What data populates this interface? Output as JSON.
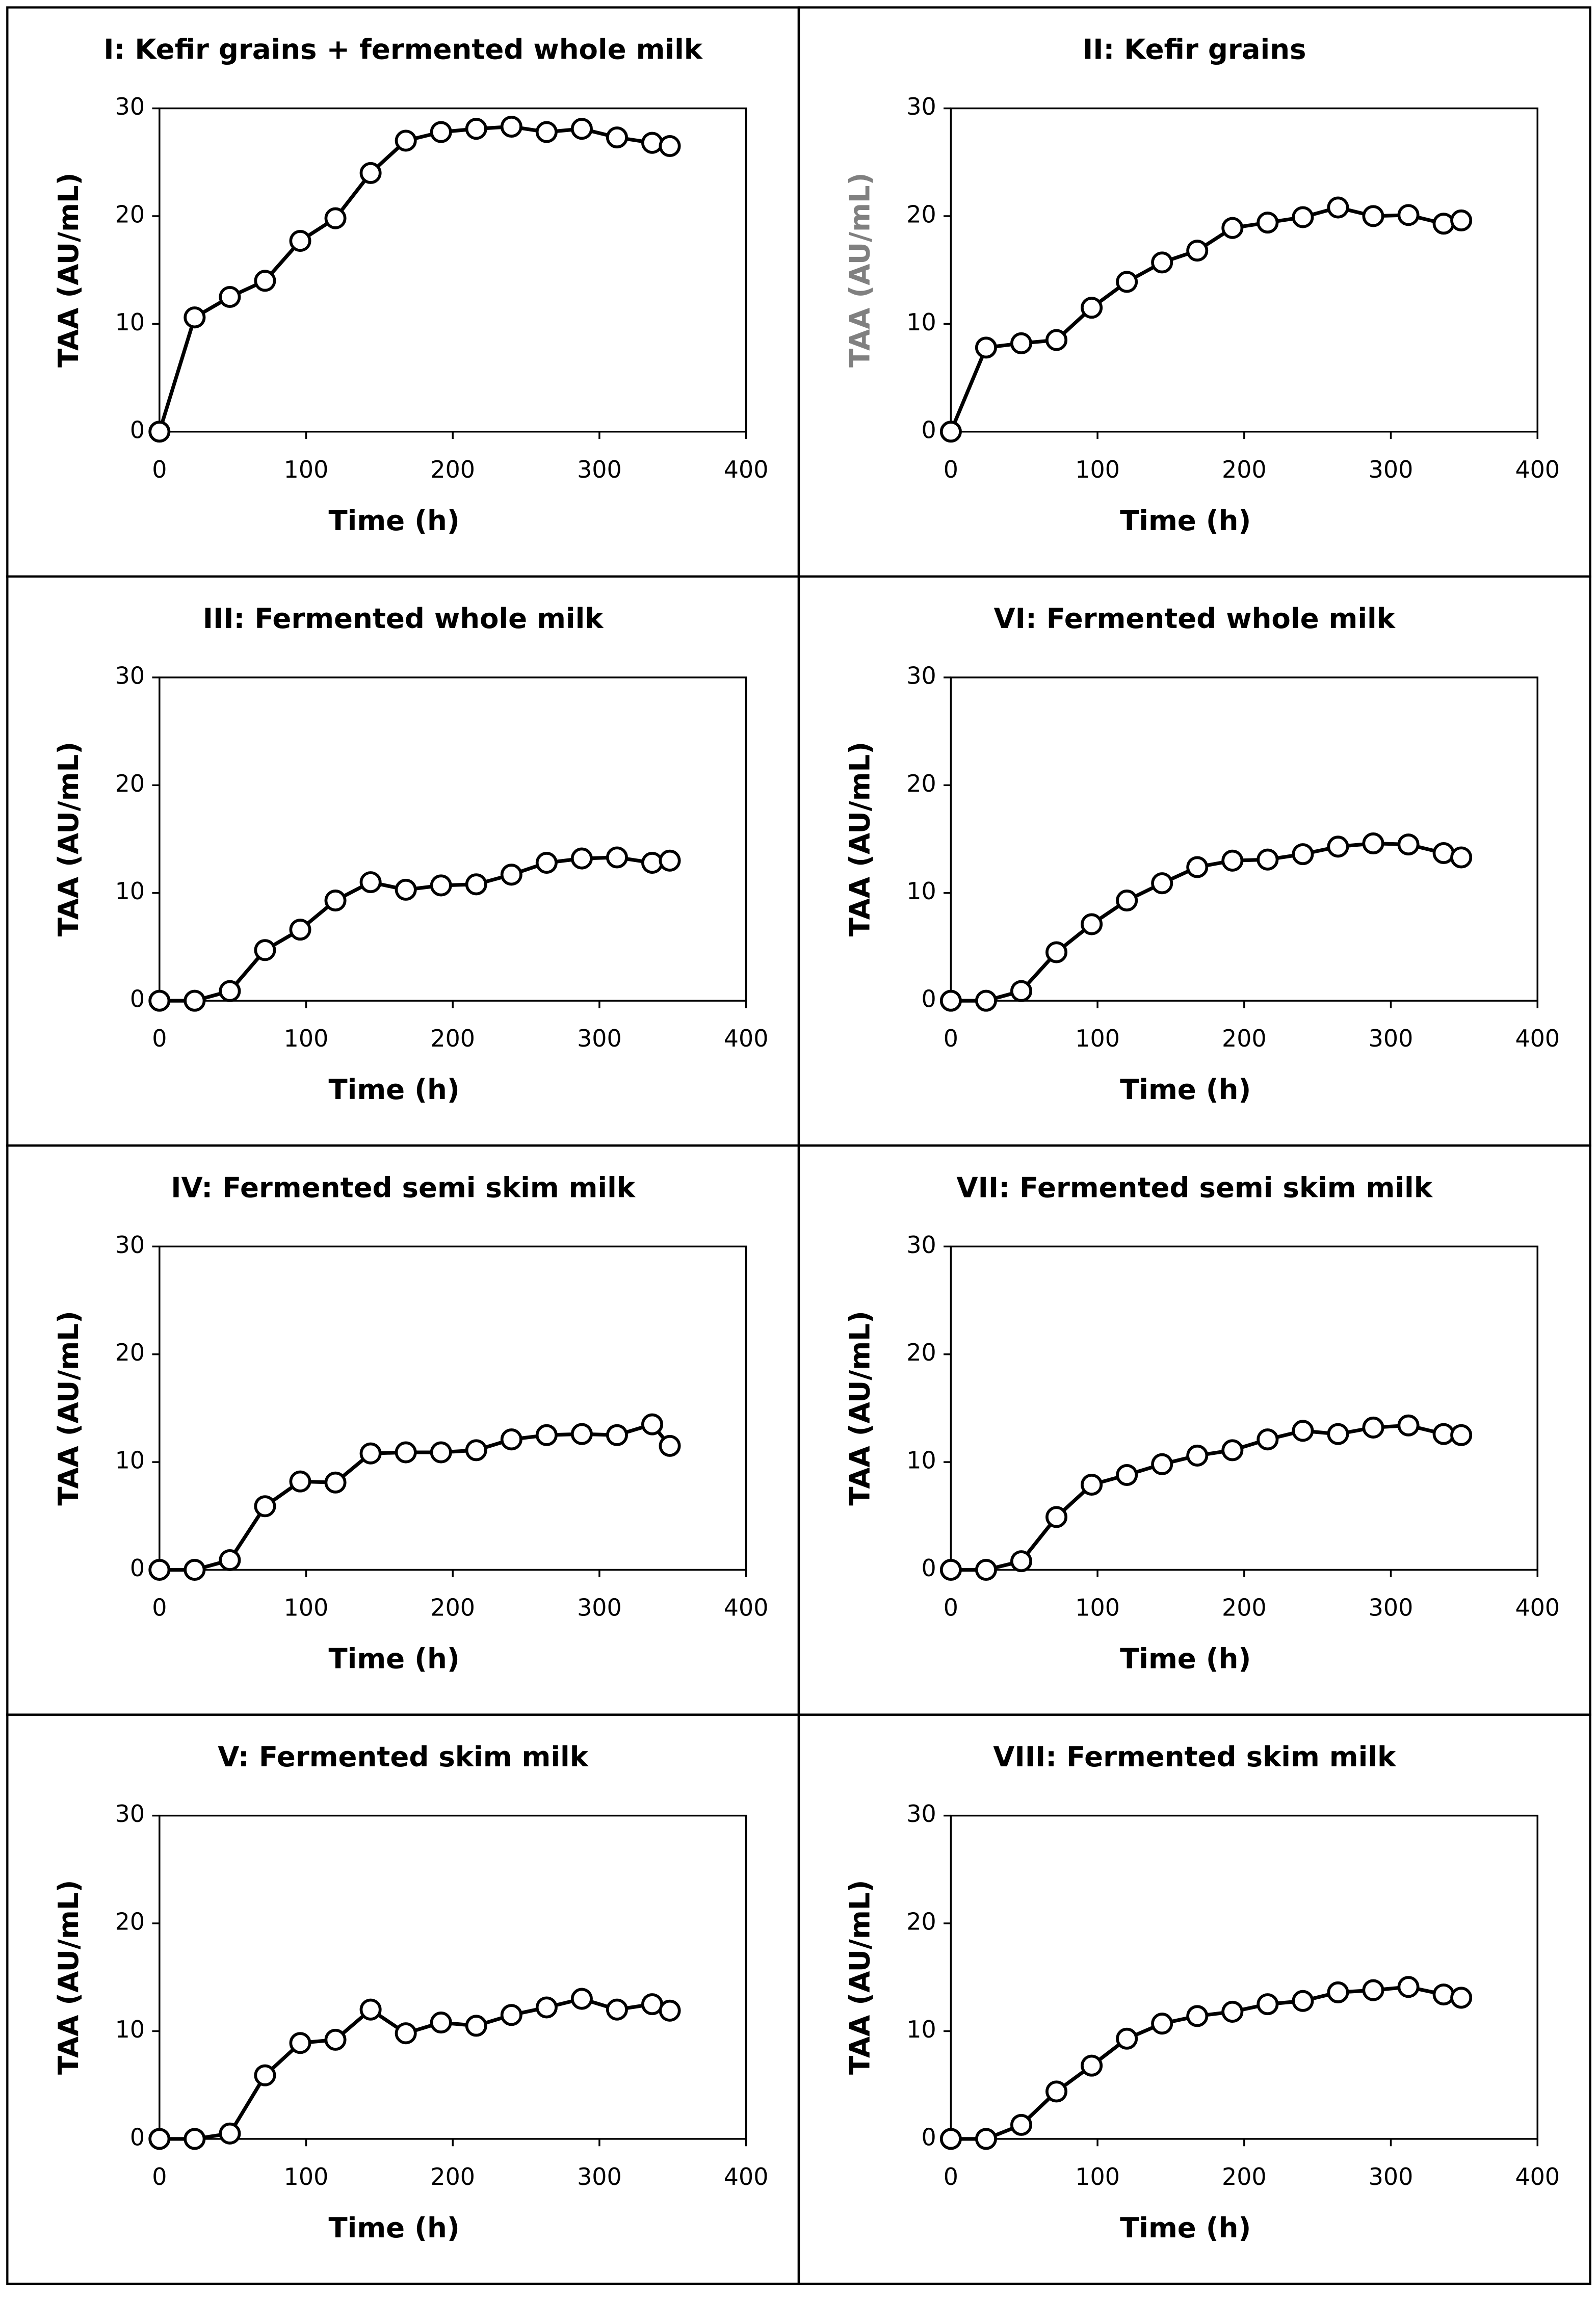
{
  "chart_data": [
    {
      "type": "line",
      "title": "I: Kefir grains + fermented whole milk",
      "xlabel": "Time (h)",
      "ylabel": "TAA (AU/mL)",
      "ylabel_color": "#000000",
      "x": [
        0,
        24,
        48,
        72,
        96,
        120,
        144,
        168,
        192,
        216,
        240,
        264,
        288,
        312,
        336,
        348
      ],
      "values": [
        0,
        10.6,
        12.5,
        14,
        17.7,
        19.8,
        24,
        27,
        27.8,
        28.1,
        28.3,
        27.8,
        28.1,
        27.3,
        26.8,
        26.5
      ],
      "color": "#000000",
      "marker_fill": "#ffffff",
      "xlim": [
        0,
        400
      ],
      "ylim": [
        0,
        30
      ],
      "xticks": [
        0,
        100,
        200,
        300,
        400
      ],
      "yticks": [
        0,
        10,
        20,
        30
      ]
    },
    {
      "type": "line",
      "title": "II: Kefir grains",
      "xlabel": "Time (h)",
      "ylabel": "TAA (AU/mL)",
      "ylabel_color": "#808080",
      "x": [
        0,
        24,
        48,
        72,
        96,
        120,
        144,
        168,
        192,
        216,
        240,
        264,
        288,
        312,
        336,
        348
      ],
      "values": [
        0,
        7.8,
        8.2,
        8.5,
        11.5,
        13.9,
        15.7,
        16.8,
        18.9,
        19.4,
        19.9,
        20.8,
        20,
        20.1,
        19.3,
        19.6
      ],
      "color": "#000000",
      "marker_fill": "#ffffff",
      "xlim": [
        0,
        400
      ],
      "ylim": [
        0,
        30
      ],
      "xticks": [
        0,
        100,
        200,
        300,
        400
      ],
      "yticks": [
        0,
        10,
        20,
        30
      ]
    },
    {
      "type": "line",
      "title": "III: Fermented whole milk",
      "xlabel": "Time (h)",
      "ylabel": "TAA (AU/mL)",
      "ylabel_color": "#000000",
      "x": [
        0,
        24,
        48,
        72,
        96,
        120,
        144,
        168,
        192,
        216,
        240,
        264,
        288,
        312,
        336,
        348
      ],
      "values": [
        0,
        0,
        0.9,
        4.7,
        6.6,
        9.3,
        11,
        10.3,
        10.7,
        10.8,
        11.7,
        12.8,
        13.2,
        13.3,
        12.8,
        13
      ],
      "color": "#000000",
      "marker_fill": "#ffffff",
      "xlim": [
        0,
        400
      ],
      "ylim": [
        0,
        30
      ],
      "xticks": [
        0,
        100,
        200,
        300,
        400
      ],
      "yticks": [
        0,
        10,
        20,
        30
      ]
    },
    {
      "type": "line",
      "title": "VI: Fermented whole milk",
      "xlabel": "Time (h)",
      "ylabel": "TAA (AU/mL)",
      "ylabel_color": "#000000",
      "x": [
        0,
        24,
        48,
        72,
        96,
        120,
        144,
        168,
        192,
        216,
        240,
        264,
        288,
        312,
        336,
        348
      ],
      "values": [
        0,
        0,
        0.9,
        4.5,
        7.1,
        9.3,
        10.9,
        12.4,
        13,
        13.1,
        13.6,
        14.3,
        14.6,
        14.5,
        13.7,
        13.3
      ],
      "color": "#000000",
      "marker_fill": "#ffffff",
      "xlim": [
        0,
        400
      ],
      "ylim": [
        0,
        30
      ],
      "xticks": [
        0,
        100,
        200,
        300,
        400
      ],
      "yticks": [
        0,
        10,
        20,
        30
      ]
    },
    {
      "type": "line",
      "title": "IV: Fermented semi skim milk",
      "xlabel": "Time (h)",
      "ylabel": "TAA (AU/mL)",
      "ylabel_color": "#000000",
      "x": [
        0,
        24,
        48,
        72,
        96,
        120,
        144,
        168,
        192,
        216,
        240,
        264,
        288,
        312,
        336,
        348
      ],
      "values": [
        0,
        0,
        0.9,
        5.9,
        8.2,
        8.1,
        10.8,
        10.9,
        10.9,
        11.1,
        12.1,
        12.5,
        12.6,
        12.5,
        13.5,
        11.5
      ],
      "color": "#000000",
      "marker_fill": "#ffffff",
      "xlim": [
        0,
        400
      ],
      "ylim": [
        0,
        30
      ],
      "xticks": [
        0,
        100,
        200,
        300,
        400
      ],
      "yticks": [
        0,
        10,
        20,
        30
      ]
    },
    {
      "type": "line",
      "title": "VII: Fermented semi skim milk",
      "xlabel": "Time (h)",
      "ylabel": "TAA (AU/mL)",
      "ylabel_color": "#000000",
      "x": [
        0,
        24,
        48,
        72,
        96,
        120,
        144,
        168,
        192,
        216,
        240,
        264,
        288,
        312,
        336,
        348
      ],
      "values": [
        0,
        0,
        0.8,
        4.9,
        7.9,
        8.8,
        9.8,
        10.6,
        11.1,
        12.1,
        12.9,
        12.6,
        13.2,
        13.4,
        12.6,
        12.5
      ],
      "color": "#000000",
      "marker_fill": "#ffffff",
      "xlim": [
        0,
        400
      ],
      "ylim": [
        0,
        30
      ],
      "xticks": [
        0,
        100,
        200,
        300,
        400
      ],
      "yticks": [
        0,
        10,
        20,
        30
      ]
    },
    {
      "type": "line",
      "title": "V: Fermented skim milk",
      "xlabel": "Time (h)",
      "ylabel": "TAA (AU/mL)",
      "ylabel_color": "#000000",
      "x": [
        0,
        24,
        48,
        72,
        96,
        120,
        144,
        168,
        192,
        216,
        240,
        264,
        288,
        312,
        336,
        348
      ],
      "values": [
        0,
        0,
        0.5,
        5.9,
        8.9,
        9.2,
        12,
        9.8,
        10.8,
        10.5,
        11.5,
        12.2,
        13,
        12,
        12.5,
        11.9
      ],
      "color": "#000000",
      "marker_fill": "#ffffff",
      "xlim": [
        0,
        400
      ],
      "ylim": [
        0,
        30
      ],
      "xticks": [
        0,
        100,
        200,
        300,
        400
      ],
      "yticks": [
        0,
        10,
        20,
        30
      ]
    },
    {
      "type": "line",
      "title": "VIII: Fermented skim milk",
      "xlabel": "Time (h)",
      "ylabel": "TAA (AU/mL)",
      "ylabel_color": "#000000",
      "x": [
        0,
        24,
        48,
        72,
        96,
        120,
        144,
        168,
        192,
        216,
        240,
        264,
        288,
        312,
        336,
        348
      ],
      "values": [
        0,
        0,
        1.3,
        4.4,
        6.8,
        9.3,
        10.7,
        11.4,
        11.8,
        12.5,
        12.8,
        13.6,
        13.8,
        14.1,
        13.4,
        13.1
      ],
      "color": "#000000",
      "marker_fill": "#ffffff",
      "xlim": [
        0,
        400
      ],
      "ylim": [
        0,
        30
      ],
      "xticks": [
        0,
        100,
        200,
        300,
        400
      ],
      "yticks": [
        0,
        10,
        20,
        30
      ]
    }
  ]
}
